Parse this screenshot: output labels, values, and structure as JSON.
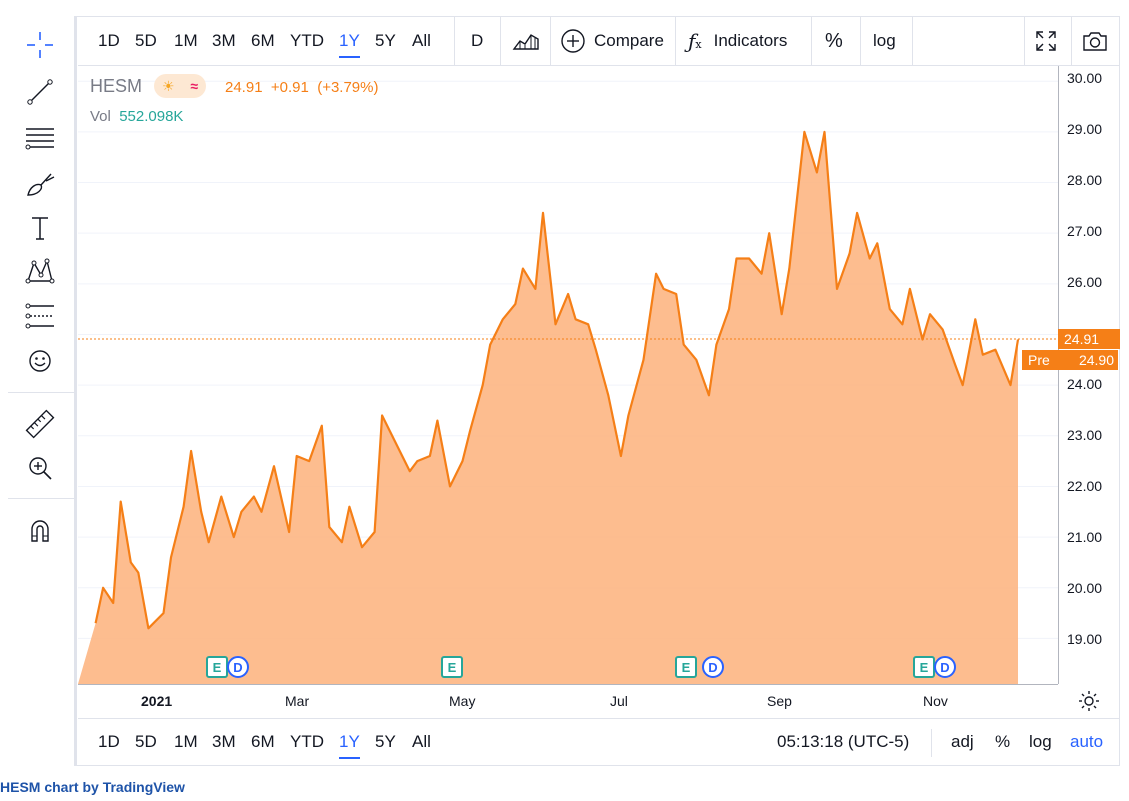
{
  "symbol": "HESM",
  "legend": {
    "last": "24.91",
    "change": "+0.91",
    "change_pct": "(+3.79%)",
    "vol_label": "Vol",
    "vol_value": "552.098K",
    "line_color": "#f57f17",
    "fill_color": "#fdb27b"
  },
  "top_toolbar": {
    "ranges": [
      "1D",
      "5D",
      "1M",
      "3M",
      "6M",
      "YTD",
      "1Y",
      "5Y",
      "All"
    ],
    "active_range": "1Y",
    "interval": "D",
    "compare_label": "Compare",
    "indicators_label": "Indicators",
    "percent_label": "%",
    "log_label": "log"
  },
  "bottom_toolbar": {
    "ranges": [
      "1D",
      "5D",
      "1M",
      "3M",
      "6M",
      "YTD",
      "1Y",
      "5Y",
      "All"
    ],
    "active_range": "1Y",
    "clock": "05:13:18 (UTC-5)",
    "adj_label": "adj",
    "percent_label": "%",
    "log_label": "log",
    "auto_label": "auto"
  },
  "price_axis": {
    "ticks": [
      "30.00",
      "29.00",
      "28.00",
      "27.00",
      "26.00",
      "25.00",
      "24.00",
      "23.00",
      "22.00",
      "21.00",
      "20.00",
      "19.00"
    ],
    "last_price_tag": "24.91",
    "pre_label": "Pre",
    "pre_price": "24.90"
  },
  "time_axis": {
    "labels": [
      "2021",
      "Mar",
      "May",
      "Jul",
      "Sep",
      "Nov"
    ]
  },
  "events": {
    "earnings": "E",
    "dividend": "D"
  },
  "footer": {
    "text": "HESM chart by TradingView"
  },
  "icons": {
    "left_toolbar": [
      "crosshair-icon",
      "trend-line-icon",
      "fib-retracement-icon",
      "brush-icon",
      "text-icon",
      "pattern-icon",
      "prediction-icon",
      "emoji-icon",
      "ruler-icon",
      "zoom-in-icon",
      "magnet-icon"
    ],
    "top_right": [
      "fullscreen-icon",
      "camera-icon"
    ],
    "time_axis": [
      "settings-icon"
    ]
  },
  "chart_data": {
    "type": "area",
    "title": "",
    "xlabel": "",
    "ylabel": "",
    "ylim": [
      18.1,
      30.3
    ],
    "x_ticks": [
      "2021",
      "Mar",
      "May",
      "Jul",
      "Sep",
      "Nov"
    ],
    "series": [
      {
        "name": "HESM",
        "x": [
          "2020-12-01",
          "2020-12-04",
          "2020-12-08",
          "2020-12-11",
          "2020-12-15",
          "2020-12-18",
          "2020-12-22",
          "2020-12-28",
          "2020-12-31",
          "2021-01-05",
          "2021-01-08",
          "2021-01-12",
          "2021-01-15",
          "2021-01-20",
          "2021-01-25",
          "2021-01-28",
          "2021-02-02",
          "2021-02-05",
          "2021-02-10",
          "2021-02-16",
          "2021-02-19",
          "2021-02-24",
          "2021-03-01",
          "2021-03-04",
          "2021-03-09",
          "2021-03-12",
          "2021-03-17",
          "2021-03-22",
          "2021-03-25",
          "2021-03-30",
          "2021-04-05",
          "2021-04-08",
          "2021-04-13",
          "2021-04-16",
          "2021-04-21",
          "2021-04-26",
          "2021-04-29",
          "2021-05-04",
          "2021-05-07",
          "2021-05-12",
          "2021-05-17",
          "2021-05-20",
          "2021-05-25",
          "2021-05-28",
          "2021-06-02",
          "2021-06-07",
          "2021-06-10",
          "2021-06-15",
          "2021-06-18",
          "2021-06-23",
          "2021-06-28",
          "2021-07-01",
          "2021-07-07",
          "2021-07-12",
          "2021-07-15",
          "2021-07-20",
          "2021-07-23",
          "2021-07-28",
          "2021-08-02",
          "2021-08-05",
          "2021-08-10",
          "2021-08-13",
          "2021-08-18",
          "2021-08-23",
          "2021-08-26",
          "2021-08-31",
          "2021-09-03",
          "2021-09-09",
          "2021-09-14",
          "2021-09-17",
          "2021-09-22",
          "2021-09-27",
          "2021-09-30",
          "2021-10-05",
          "2021-10-08",
          "2021-10-13",
          "2021-10-18",
          "2021-10-21",
          "2021-10-26",
          "2021-10-29",
          "2021-11-03",
          "2021-11-08",
          "2021-11-11",
          "2021-11-16",
          "2021-11-19",
          "2021-11-24",
          "2021-11-30",
          "2021-12-03"
        ],
        "y": [
          19.3,
          20.0,
          19.7,
          21.7,
          20.5,
          20.3,
          19.2,
          19.5,
          20.6,
          21.6,
          22.7,
          21.5,
          20.9,
          21.8,
          21.0,
          21.5,
          21.8,
          21.5,
          22.4,
          21.1,
          22.6,
          22.5,
          23.2,
          21.2,
          20.9,
          21.6,
          20.8,
          21.1,
          23.4,
          22.9,
          22.3,
          22.5,
          22.6,
          23.3,
          22.0,
          22.5,
          23.1,
          24.0,
          24.8,
          25.3,
          25.6,
          26.3,
          25.9,
          27.4,
          25.2,
          25.8,
          25.3,
          25.2,
          24.7,
          23.8,
          22.6,
          23.4,
          24.5,
          26.2,
          25.9,
          25.8,
          24.8,
          24.5,
          23.8,
          24.8,
          25.5,
          26.5,
          26.5,
          26.2,
          27.0,
          25.4,
          26.3,
          29.0,
          28.2,
          29.0,
          25.9,
          26.6,
          27.4,
          26.5,
          26.8,
          25.5,
          25.2,
          25.9,
          24.9,
          25.4,
          25.1,
          24.4,
          24.0,
          25.3,
          24.6,
          24.7,
          24.0,
          24.9
        ]
      }
    ]
  }
}
